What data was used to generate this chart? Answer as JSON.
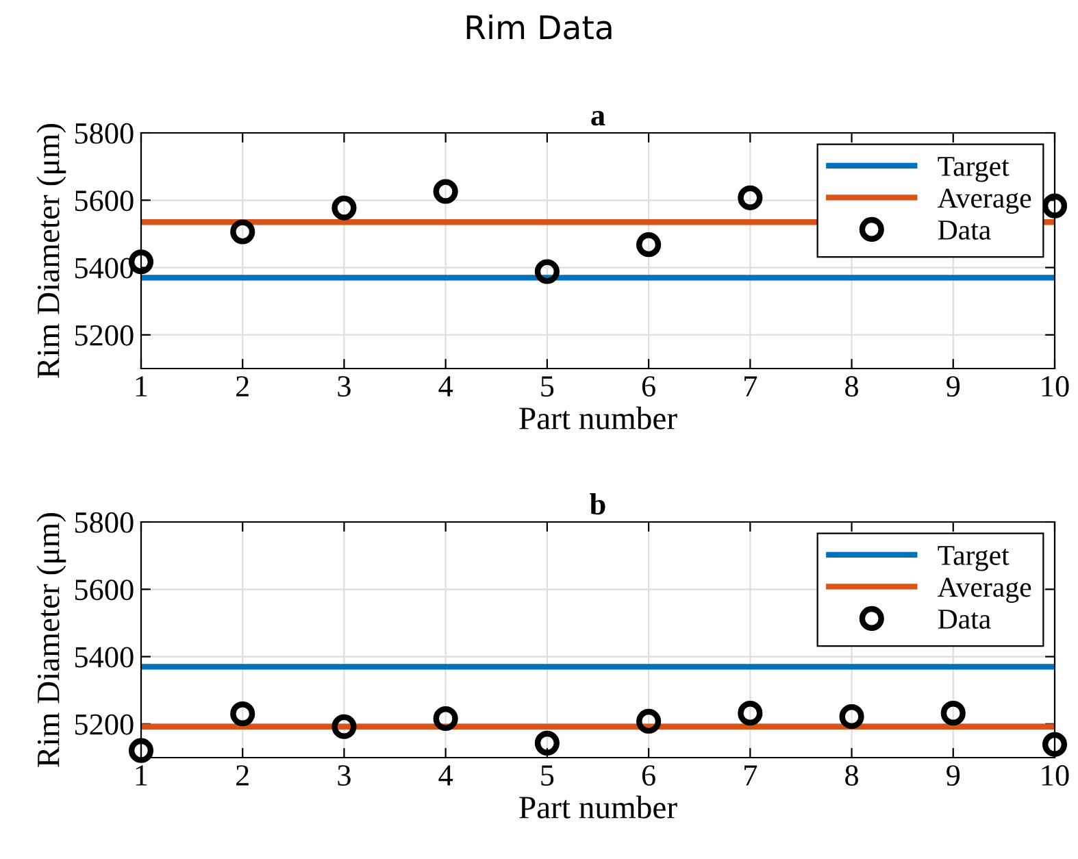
{
  "chart_data": [
    {
      "type": "scatter",
      "title": "a",
      "annotations": [
        "Rim Data"
      ],
      "xlabel": "Part number",
      "ylabel": "Rim Diameter (μm)",
      "xlim": [
        1,
        10
      ],
      "xticks": [
        1,
        2,
        3,
        4,
        5,
        6,
        7,
        8,
        9,
        10
      ],
      "ylim": [
        5100,
        5800
      ],
      "yticks": [
        5200,
        5400,
        5600,
        5800
      ],
      "grid": true,
      "legend": "top right",
      "series": [
        {
          "name": "Target",
          "type": "line",
          "color": "#0072bd",
          "x": [
            1,
            10
          ],
          "values": [
            5370,
            5370
          ],
          "marker": "none",
          "line_style": "solid"
        },
        {
          "name": "Average",
          "type": "line",
          "color": "#d95319",
          "x": [
            1,
            10
          ],
          "values": [
            5535,
            5535
          ],
          "marker": "none",
          "line_style": "solid"
        },
        {
          "name": "Data",
          "color": "#000000",
          "x": [
            1,
            2,
            3,
            4,
            5,
            6,
            7,
            8,
            9,
            10
          ],
          "values": [
            5417,
            5506,
            5577,
            5626,
            5388,
            5468,
            5607,
            null,
            null,
            5583
          ],
          "marker": "circle"
        }
      ]
    },
    {
      "type": "scatter",
      "title": "b",
      "xlabel": "Part number",
      "ylabel": "Rim Diameter (μm)",
      "xlim": [
        1,
        10
      ],
      "xticks": [
        1,
        2,
        3,
        4,
        5,
        6,
        7,
        8,
        9,
        10
      ],
      "ylim": [
        5100,
        5800
      ],
      "yticks": [
        5200,
        5400,
        5600,
        5800
      ],
      "grid": true,
      "legend": "top right",
      "series": [
        {
          "name": "Target",
          "type": "line",
          "color": "#0072bd",
          "x": [
            1,
            10
          ],
          "values": [
            5370,
            5370
          ],
          "marker": "none",
          "line_style": "solid"
        },
        {
          "name": "Average",
          "type": "line",
          "color": "#d95319",
          "x": [
            1,
            10
          ],
          "values": [
            5192,
            5192
          ],
          "marker": "none",
          "line_style": "solid"
        },
        {
          "name": "Data",
          "color": "#000000",
          "x": [
            1,
            2,
            3,
            4,
            5,
            6,
            7,
            8,
            9,
            10
          ],
          "values": [
            5121,
            5230,
            5192,
            5216,
            5143,
            5208,
            5232,
            5222,
            5232,
            5139
          ],
          "marker": "circle"
        }
      ]
    }
  ]
}
